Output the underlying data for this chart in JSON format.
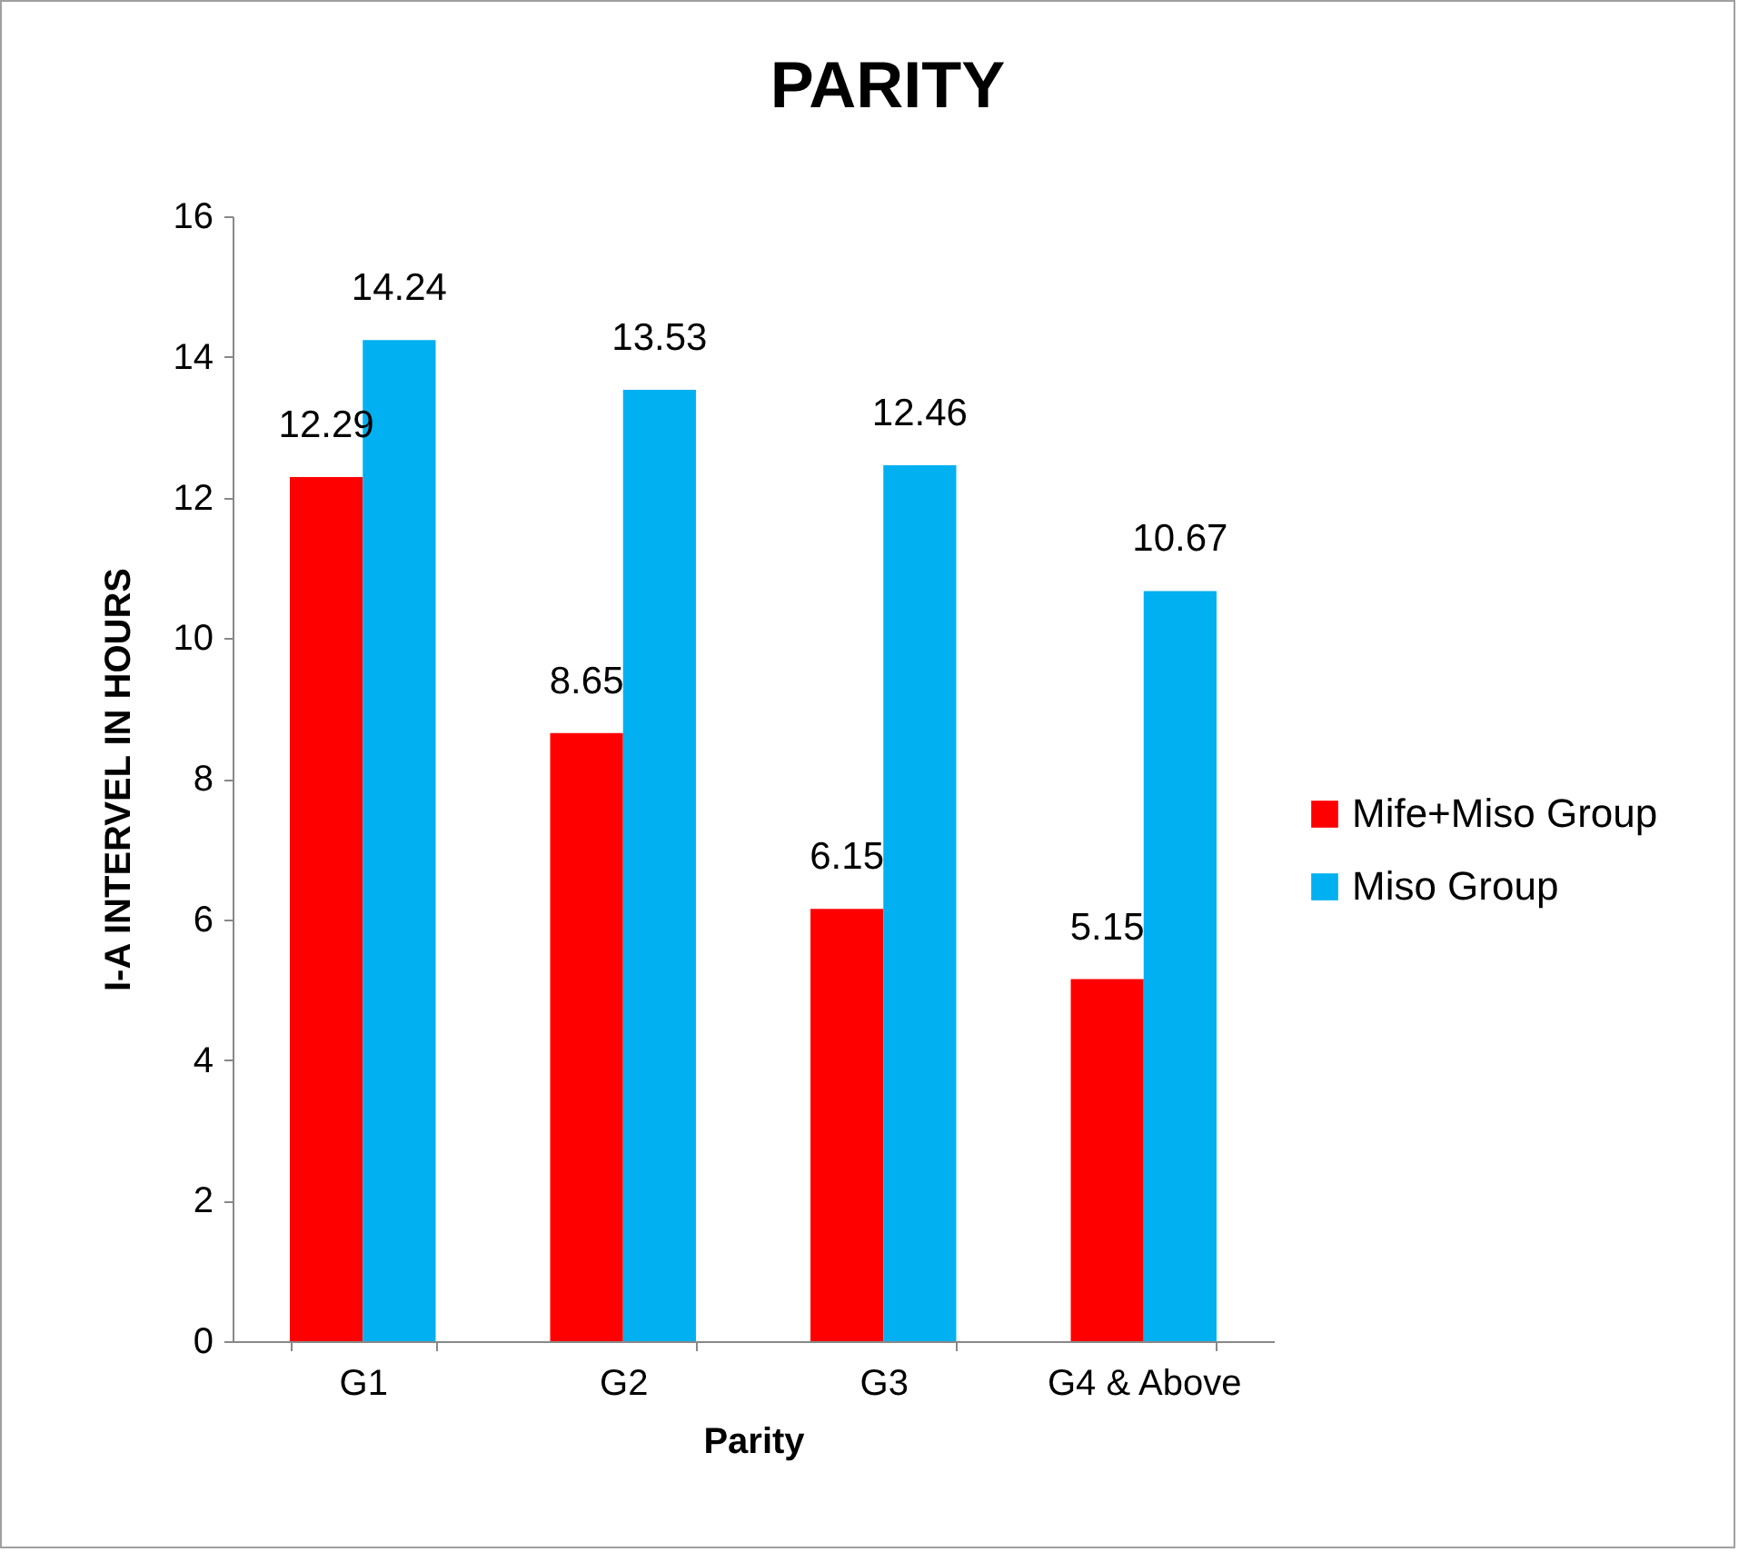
{
  "chart_data": {
    "type": "bar",
    "title": "PARITY",
    "xlabel": "Parity",
    "ylabel": "I-A INTERVEL IN HOURS",
    "categories": [
      "G1",
      "G2",
      "G3",
      "G4 & Above"
    ],
    "series": [
      {
        "name": "Mife+Miso Group",
        "color": "#ff0000",
        "values": [
          12.29,
          8.65,
          6.15,
          5.15
        ]
      },
      {
        "name": "Miso Group",
        "color": "#00b0f0",
        "values": [
          14.24,
          13.53,
          12.46,
          10.67
        ]
      }
    ],
    "ylim": [
      0,
      16
    ],
    "yticks": [
      0,
      2,
      4,
      6,
      8,
      10,
      12,
      14,
      16
    ],
    "grid": false,
    "legend": "right",
    "data_labels": true
  }
}
